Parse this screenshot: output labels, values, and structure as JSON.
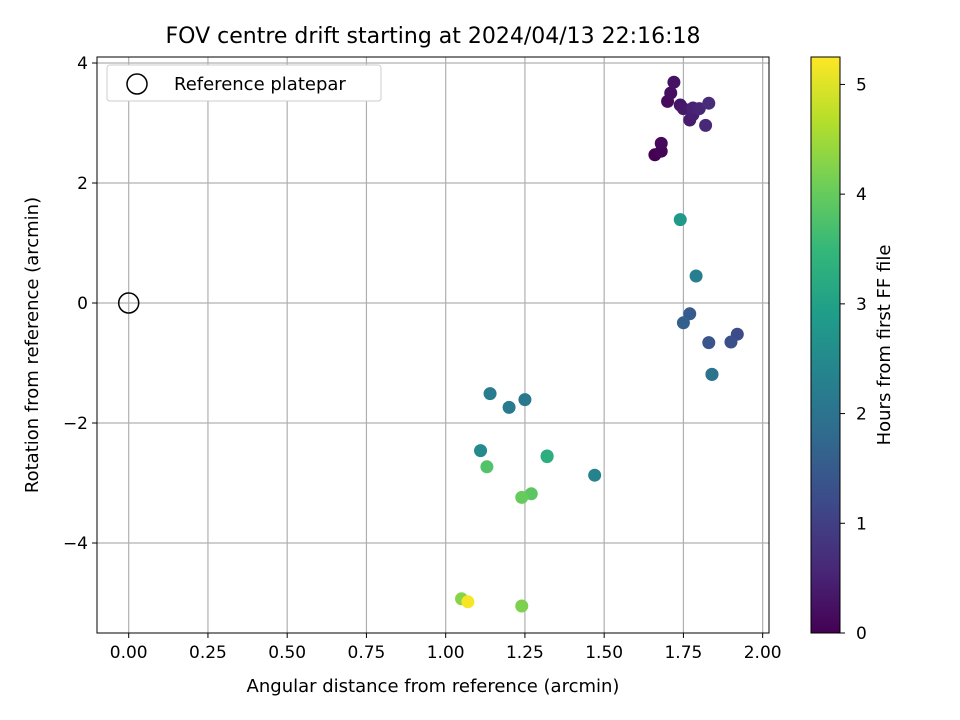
{
  "chart_data": {
    "type": "scatter",
    "title": "FOV centre drift starting at 2024/04/13 22:16:18",
    "xlabel": "Angular distance from reference (arcmin)",
    "ylabel": "Rotation from reference (arcmin)",
    "xlim": [
      -0.1,
      2.02
    ],
    "ylim": [
      -5.5,
      4.1
    ],
    "xticks": [
      0.0,
      0.25,
      0.5,
      0.75,
      1.0,
      1.25,
      1.5,
      1.75,
      2.0
    ],
    "xtick_labels": [
      "0.00",
      "0.25",
      "0.50",
      "0.75",
      "1.00",
      "1.25",
      "1.50",
      "1.75",
      "2.00"
    ],
    "yticks": [
      -4,
      -2,
      0,
      2,
      4
    ],
    "ytick_labels": [
      "−4",
      "−2",
      "0",
      "2",
      "4"
    ],
    "grid": true,
    "legend": {
      "position": "top-left",
      "entries": [
        "Reference platepar"
      ]
    },
    "reference_point": {
      "x": 0.0,
      "y": 0.0
    },
    "colorbar": {
      "label": "Hours from first FF file",
      "range": [
        0,
        5.25
      ],
      "ticks": [
        0,
        1,
        2,
        3,
        4,
        5
      ],
      "tick_labels": [
        "0",
        "1",
        "2",
        "3",
        "4",
        "5"
      ],
      "colormap": "viridis"
    },
    "points": [
      {
        "x": 1.66,
        "y": 2.47,
        "c": 0.0
      },
      {
        "x": 1.68,
        "y": 2.53,
        "c": 0.05
      },
      {
        "x": 1.68,
        "y": 2.66,
        "c": 0.1
      },
      {
        "x": 1.7,
        "y": 3.36,
        "c": 0.15
      },
      {
        "x": 1.71,
        "y": 3.5,
        "c": 0.2
      },
      {
        "x": 1.72,
        "y": 3.68,
        "c": 0.25
      },
      {
        "x": 1.74,
        "y": 3.3,
        "c": 0.3
      },
      {
        "x": 1.75,
        "y": 3.24,
        "c": 0.35
      },
      {
        "x": 1.77,
        "y": 3.05,
        "c": 0.4
      },
      {
        "x": 1.78,
        "y": 3.14,
        "c": 0.45
      },
      {
        "x": 1.78,
        "y": 3.25,
        "c": 0.5
      },
      {
        "x": 1.8,
        "y": 3.24,
        "c": 0.55
      },
      {
        "x": 1.82,
        "y": 2.96,
        "c": 0.6
      },
      {
        "x": 1.83,
        "y": 3.33,
        "c": 0.65
      },
      {
        "x": 1.92,
        "y": -0.52,
        "c": 1.2
      },
      {
        "x": 1.9,
        "y": -0.65,
        "c": 1.3
      },
      {
        "x": 1.83,
        "y": -0.66,
        "c": 1.4
      },
      {
        "x": 1.77,
        "y": -0.18,
        "c": 1.5
      },
      {
        "x": 1.75,
        "y": -0.33,
        "c": 1.6
      },
      {
        "x": 1.84,
        "y": -1.19,
        "c": 1.9
      },
      {
        "x": 1.84,
        "y": -1.19,
        "c": 2.0
      },
      {
        "x": 1.25,
        "y": -1.61,
        "c": 2.1
      },
      {
        "x": 1.2,
        "y": -1.74,
        "c": 2.15
      },
      {
        "x": 1.14,
        "y": -1.51,
        "c": 2.2
      },
      {
        "x": 1.79,
        "y": 0.45,
        "c": 2.25
      },
      {
        "x": 1.47,
        "y": -2.87,
        "c": 2.35
      },
      {
        "x": 1.11,
        "y": -2.46,
        "c": 2.5
      },
      {
        "x": 1.74,
        "y": 1.39,
        "c": 2.8
      },
      {
        "x": 1.32,
        "y": -2.55,
        "c": 3.0
      },
      {
        "x": 1.32,
        "y": -2.56,
        "c": 3.3
      },
      {
        "x": 1.13,
        "y": -2.73,
        "c": 3.8
      },
      {
        "x": 1.27,
        "y": -3.18,
        "c": 3.9
      },
      {
        "x": 1.24,
        "y": -3.24,
        "c": 4.0
      },
      {
        "x": 1.24,
        "y": -5.05,
        "c": 4.2
      },
      {
        "x": 1.05,
        "y": -4.93,
        "c": 4.3
      },
      {
        "x": 1.07,
        "y": -4.98,
        "c": 5.2
      }
    ]
  }
}
